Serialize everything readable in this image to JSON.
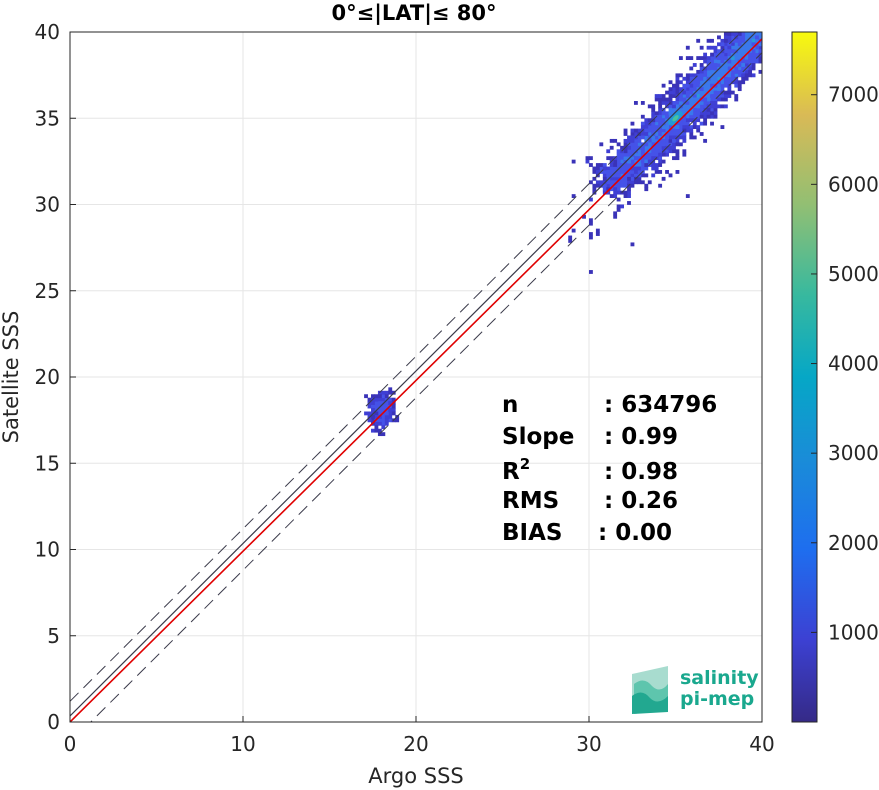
{
  "chart_data": {
    "type": "heatmap",
    "title": "0°≤|LAT|≤ 80°",
    "xlabel": "Argo SSS",
    "ylabel": "Satellite SSS",
    "xlim": [
      0,
      40
    ],
    "ylim": [
      0,
      40
    ],
    "xticks": [
      "0",
      "10",
      "20",
      "30",
      "40"
    ],
    "yticks": [
      "0",
      "5",
      "10",
      "15",
      "20",
      "25",
      "30",
      "35",
      "40"
    ],
    "grid": true,
    "colorbar": {
      "range": [
        0,
        7700
      ],
      "ticks": [
        "1000",
        "2000",
        "3000",
        "4000",
        "5000",
        "6000",
        "7000"
      ],
      "colormap": "parula"
    },
    "clusters": [
      {
        "x_range": [
          28.5,
          40
        ],
        "y_range": [
          23.5,
          40
        ],
        "peak_at": [
          35,
          35
        ],
        "peak_count": 7700
      },
      {
        "x_range": [
          17,
          19
        ],
        "y_range": [
          16.5,
          19.3
        ],
        "peak_at": [
          18,
          18
        ],
        "peak_count": 700
      }
    ],
    "reference_lines": {
      "identity": {
        "slope": 1,
        "intercept": 0,
        "color": "#3a3a4a"
      },
      "envelope_upper": {
        "slope": 1,
        "intercept": 1.2,
        "style": "dashed"
      },
      "envelope_lower": {
        "slope": 1,
        "intercept": -1.2,
        "style": "dashed"
      },
      "regression": {
        "slope": 0.99,
        "intercept": 0,
        "color": "#e00000"
      }
    },
    "stats": [
      {
        "label": "n",
        "value": ": 634796"
      },
      {
        "label": "Slope",
        "value": ": 0.99"
      },
      {
        "label": "R",
        "sup": "2",
        "value": ": 0.98"
      },
      {
        "label": "RMS",
        "value": ": 0.26"
      },
      {
        "label": "BIAS",
        "value": ": 0.00"
      }
    ]
  },
  "logo": {
    "line1": "salinity",
    "line2": "pi-mep"
  }
}
